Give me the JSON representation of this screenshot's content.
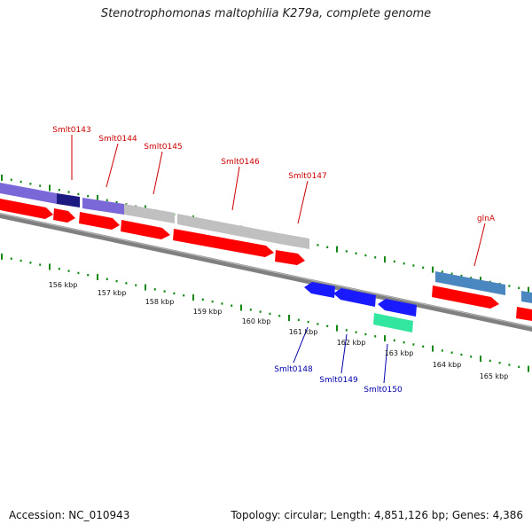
{
  "title": "Stenotrophomonas maltophilia K279a, complete genome",
  "footer": {
    "accession": "Accession: NC_010943",
    "genome_info": "Topology: circular; Length: 4,851,126 bp; Genes: 4,386"
  },
  "colors": {
    "cds": "#ff0000",
    "hit_purple": "#7b68d8",
    "hit_navy": "#1a1a80",
    "hit_gray": "#c0c0c0",
    "hit_steelblue": "#4a86c0",
    "reverse_cds": "#1a1aff",
    "reverse_hit": "#33e6a0",
    "forward_label": "#cc0000",
    "reverse_label": "#0000aa",
    "tick": "#118811",
    "backbone": "#808080"
  },
  "kbp_labels": [
    "156 kbp",
    "157 kbp",
    "158 kbp",
    "159 kbp",
    "160 kbp",
    "161 kbp",
    "162 kbp",
    "163 kbp",
    "164 kbp",
    "165 kbp"
  ],
  "forward_genes": [
    {
      "label": "Smlt0143"
    },
    {
      "label": "Smlt0144"
    },
    {
      "label": "Smlt0145"
    },
    {
      "label": "Smlt0146"
    },
    {
      "label": "Smlt0147"
    },
    {
      "label": "glnA"
    }
  ],
  "reverse_genes": [
    {
      "label": "Smlt0148"
    },
    {
      "label": "Smlt0149"
    },
    {
      "label": "Smlt0150"
    }
  ]
}
